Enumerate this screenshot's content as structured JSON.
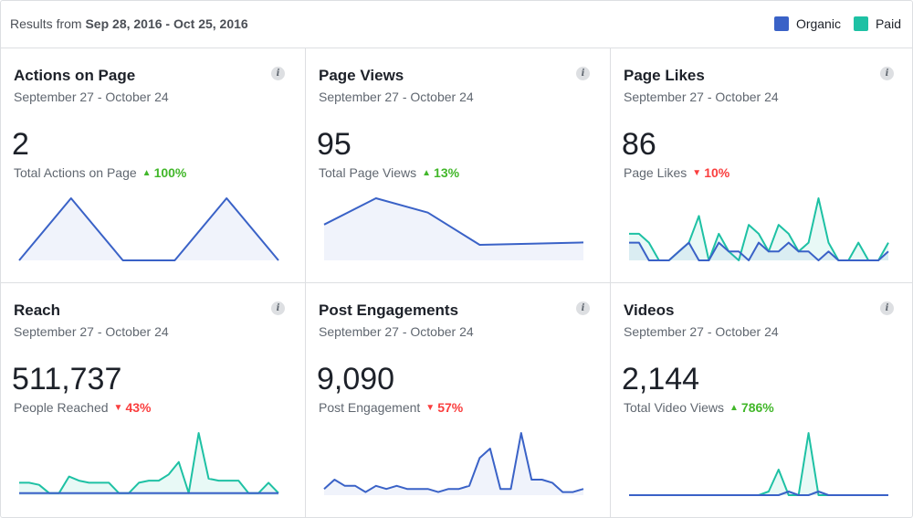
{
  "header": {
    "results_prefix": "Results from",
    "date_range": "Sep 28, 2016 - Oct 25, 2016"
  },
  "legend": {
    "organic_label": "Organic",
    "paid_label": "Paid",
    "organic_color": "#3a62c7",
    "paid_color": "#1ec1a4"
  },
  "cards": [
    {
      "title": "Actions on Page",
      "range": "September 27 - October 24",
      "value": "2",
      "subtitle": "Total Actions on Page",
      "change": "100%",
      "direction": "up",
      "icon": "info-icon",
      "chart_data": {
        "type": "line",
        "series": [
          {
            "name": "Organic",
            "values": [
              0,
              1,
              0,
              0,
              1,
              0
            ]
          }
        ]
      }
    },
    {
      "title": "Page Views",
      "range": "September 27 - October 24",
      "value": "95",
      "subtitle": "Total Page Views",
      "change": "13%",
      "direction": "up",
      "icon": "info-icon",
      "chart_data": {
        "type": "line",
        "series": [
          {
            "name": "Organic",
            "values": [
              30,
              52,
              40,
              13,
              14,
              15
            ]
          }
        ]
      }
    },
    {
      "title": "Page Likes",
      "range": "September 27 - October 24",
      "value": "86",
      "subtitle": "Page Likes",
      "change": "10%",
      "direction": "down",
      "icon": "info-icon",
      "chart_data": {
        "type": "line",
        "series": [
          {
            "name": "Organic",
            "values": [
              2,
              2,
              0,
              0,
              0,
              1,
              2,
              0,
              0,
              2,
              1,
              1,
              0,
              2,
              1,
              1,
              2,
              1,
              1,
              0,
              1,
              0,
              0,
              0,
              0,
              0,
              1
            ]
          },
          {
            "name": "Paid",
            "values": [
              3,
              3,
              2,
              0,
              0,
              1,
              2,
              5,
              0,
              3,
              1,
              0,
              4,
              3,
              1,
              4,
              3,
              1,
              2,
              7,
              2,
              0,
              0,
              2,
              0,
              0,
              2
            ]
          }
        ]
      }
    },
    {
      "title": "Reach",
      "range": "September 27 - October 24",
      "value": "511,737",
      "subtitle": "People Reached",
      "change": "43%",
      "direction": "down",
      "icon": "info-icon",
      "chart_data": {
        "type": "line",
        "series": [
          {
            "name": "Organic",
            "values": [
              1,
              1,
              1,
              1,
              1,
              1,
              1,
              1,
              1,
              1,
              1,
              1,
              1,
              1,
              1,
              1,
              1,
              1,
              1,
              1,
              1,
              1,
              1,
              1,
              1,
              1,
              1
            ]
          },
          {
            "name": "Paid",
            "values": [
              6,
              6,
              5,
              1,
              1,
              9,
              7,
              6,
              6,
              6,
              1,
              1,
              6,
              7,
              7,
              10,
              16,
              1,
              30,
              8,
              7,
              7,
              7,
              1,
              1,
              6,
              1
            ]
          }
        ]
      }
    },
    {
      "title": "Post Engagements",
      "range": "September 27 - October 24",
      "value": "9,090",
      "subtitle": "Post Engagement",
      "change": "57%",
      "direction": "down",
      "icon": "info-icon",
      "chart_data": {
        "type": "line",
        "series": [
          {
            "name": "Organic",
            "values": [
              2,
              5,
              3,
              3,
              1,
              3,
              2,
              3,
              2,
              2,
              2,
              1,
              2,
              2,
              3,
              12,
              15,
              2,
              2,
              20,
              5,
              5,
              4,
              1,
              1,
              2
            ]
          }
        ]
      }
    },
    {
      "title": "Videos",
      "range": "September 27 - October 24",
      "value": "2,144",
      "subtitle": "Total Video Views",
      "change": "786%",
      "direction": "up",
      "icon": "info-icon",
      "chart_data": {
        "type": "line",
        "series": [
          {
            "name": "Organic",
            "values": [
              0,
              0,
              0,
              0,
              0,
              0,
              0,
              0,
              0,
              0,
              0,
              0,
              0,
              0,
              0,
              0,
              1,
              0,
              0,
              1,
              0,
              0,
              0,
              0,
              0,
              0,
              0
            ]
          },
          {
            "name": "Paid",
            "values": [
              0,
              0,
              0,
              0,
              0,
              0,
              0,
              0,
              0,
              0,
              0,
              0,
              0,
              0,
              1,
              7,
              0,
              0,
              17,
              0,
              0,
              0,
              0,
              0,
              0,
              0,
              0
            ]
          }
        ]
      }
    }
  ]
}
